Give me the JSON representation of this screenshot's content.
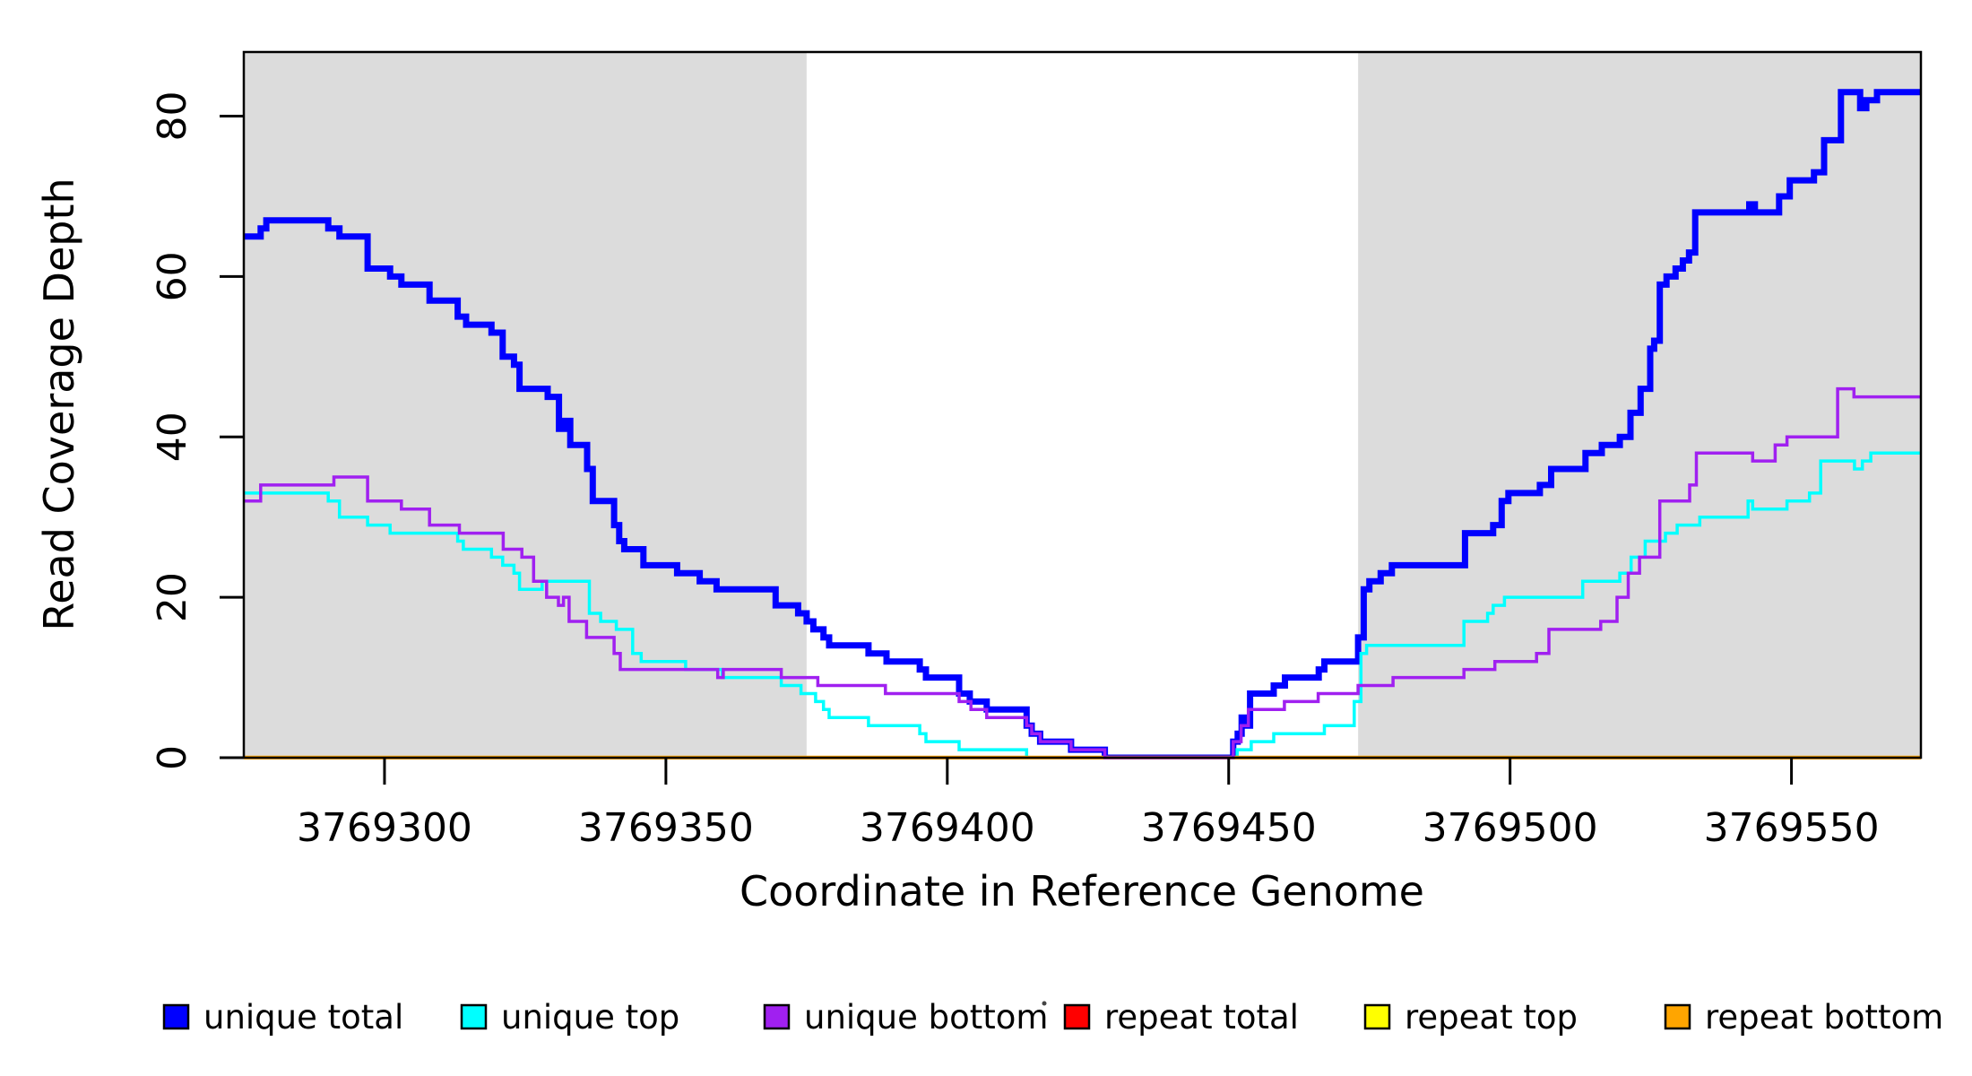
{
  "chart_data": {
    "type": "line",
    "subtype": "step-coverage",
    "title": "",
    "xlabel": "Coordinate in Reference Genome",
    "ylabel": "Read Coverage Depth",
    "xlim": [
      3769275,
      3769573
    ],
    "ylim": [
      0,
      88
    ],
    "grid": false,
    "background_shading": {
      "color": "#dcdcdc",
      "regions": [
        {
          "x0": 3769275,
          "x1": 3769375
        },
        {
          "x0": 3769473,
          "x1": 3769573
        }
      ]
    },
    "xtick_values": [
      3769300,
      3769350,
      3769400,
      3769450,
      3769500,
      3769550
    ],
    "xtick_labels": [
      "3769300",
      "3769350",
      "3769400",
      "3769450",
      "3769500",
      "3769550"
    ],
    "ytick_values": [
      0,
      20,
      40,
      60,
      80
    ],
    "ytick_labels": [
      "0",
      "20",
      "40",
      "60",
      "80"
    ],
    "legend": {
      "position": "bottom",
      "entries": [
        {
          "label": "unique total",
          "color": "#0000ff"
        },
        {
          "label": "unique top",
          "color": "#00ffff"
        },
        {
          "label": "unique bottom",
          "color": "#a020f0"
        },
        {
          "label": "repeat total",
          "color": "#ff0000"
        },
        {
          "label": "repeat top",
          "color": "#ffff00"
        },
        {
          "label": "repeat bottom",
          "color": "#ffa500"
        }
      ]
    },
    "series": [
      {
        "name": "unique-total",
        "label": "unique total",
        "color": "#0000ff",
        "stroke_px": 7,
        "points": [
          [
            3769275,
            65
          ],
          [
            3769278,
            66
          ],
          [
            3769279,
            67
          ],
          [
            3769290,
            66
          ],
          [
            3769292,
            65
          ],
          [
            3769297,
            61
          ],
          [
            3769301,
            60
          ],
          [
            3769303,
            59
          ],
          [
            3769308,
            57
          ],
          [
            3769313,
            55
          ],
          [
            3769314.5,
            54
          ],
          [
            3769319,
            53
          ],
          [
            3769321,
            50
          ],
          [
            3769323,
            49
          ],
          [
            3769324,
            46
          ],
          [
            3769329,
            45
          ],
          [
            3769331,
            41
          ],
          [
            3769332,
            42
          ],
          [
            3769333,
            39
          ],
          [
            3769336,
            36
          ],
          [
            3769337,
            32
          ],
          [
            3769340.8,
            29
          ],
          [
            3769341.7,
            27
          ],
          [
            3769342.6,
            26
          ],
          [
            3769346,
            24
          ],
          [
            3769352,
            23
          ],
          [
            3769356,
            22
          ],
          [
            3769359,
            21
          ],
          [
            3769369.5,
            19
          ],
          [
            3769373.5,
            18
          ],
          [
            3769375,
            17
          ],
          [
            3769376.2,
            16
          ],
          [
            3769378,
            15
          ],
          [
            3769379,
            14
          ],
          [
            3769386,
            13
          ],
          [
            3769389.2,
            12
          ],
          [
            3769395.1,
            11
          ],
          [
            3769396.2,
            10
          ],
          [
            3769402.1,
            8
          ],
          [
            3769404,
            7
          ],
          [
            3769407,
            6
          ],
          [
            3769414.1,
            4
          ],
          [
            3769415,
            3
          ],
          [
            3769416.5,
            2
          ],
          [
            3769422,
            1
          ],
          [
            3769428,
            0
          ],
          [
            3769450.8,
            2
          ],
          [
            3769451.6,
            3
          ],
          [
            3769452.3,
            5
          ],
          [
            3769452.9,
            4
          ],
          [
            3769453.8,
            8
          ],
          [
            3769458,
            9
          ],
          [
            3769460,
            10
          ],
          [
            3769466,
            11
          ],
          [
            3769467,
            12
          ],
          [
            3769473,
            15
          ],
          [
            3769474,
            21
          ],
          [
            3769475,
            22
          ],
          [
            3769477,
            23
          ],
          [
            3769479,
            24
          ],
          [
            3769492,
            28
          ],
          [
            3769497,
            29
          ],
          [
            3769498.5,
            32
          ],
          [
            3769499.7,
            33
          ],
          [
            3769505.3,
            34
          ],
          [
            3769507.3,
            36
          ],
          [
            3769513.4,
            38
          ],
          [
            3769516.3,
            39
          ],
          [
            3769519.5,
            40
          ],
          [
            3769521.4,
            43
          ],
          [
            3769523.2,
            46
          ],
          [
            3769524.9,
            51
          ],
          [
            3769525.6,
            52
          ],
          [
            3769526.6,
            59
          ],
          [
            3769527.8,
            60
          ],
          [
            3769529.4,
            61
          ],
          [
            3769530.7,
            62
          ],
          [
            3769531.8,
            63
          ],
          [
            3769532.9,
            68
          ],
          [
            3769542.5,
            69
          ],
          [
            3769543.5,
            68
          ],
          [
            3769547.8,
            70
          ],
          [
            3769549.7,
            72
          ],
          [
            3769554,
            73
          ],
          [
            3769555.8,
            77
          ],
          [
            3769558.8,
            83
          ],
          [
            3769562.2,
            81
          ],
          [
            3769563.3,
            82
          ],
          [
            3769565.2,
            83
          ]
        ]
      },
      {
        "name": "unique-top",
        "label": "unique top",
        "color": "#00ffff",
        "stroke_px": 3.5,
        "points": [
          [
            3769275,
            33
          ],
          [
            3769290,
            32
          ],
          [
            3769292,
            30
          ],
          [
            3769297,
            29
          ],
          [
            3769301,
            28
          ],
          [
            3769313,
            27
          ],
          [
            3769314,
            26
          ],
          [
            3769319,
            25
          ],
          [
            3769321,
            24
          ],
          [
            3769323,
            23
          ],
          [
            3769324,
            21
          ],
          [
            3769328,
            22
          ],
          [
            3769336.4,
            18
          ],
          [
            3769338.4,
            17
          ],
          [
            3769341.2,
            16
          ],
          [
            3769344.1,
            13
          ],
          [
            3769345.6,
            12
          ],
          [
            3769353.5,
            11
          ],
          [
            3769360,
            10
          ],
          [
            3769370.5,
            9
          ],
          [
            3769374,
            8
          ],
          [
            3769376.6,
            7
          ],
          [
            3769378,
            6
          ],
          [
            3769379,
            5
          ],
          [
            3769386,
            4
          ],
          [
            3769395.1,
            3
          ],
          [
            3769396.2,
            2
          ],
          [
            3769402.1,
            1
          ],
          [
            3769414.1,
            0
          ],
          [
            3769451.5,
            1
          ],
          [
            3769454,
            2
          ],
          [
            3769458,
            3
          ],
          [
            3769467,
            4
          ],
          [
            3769472.3,
            7
          ],
          [
            3769473.5,
            13
          ],
          [
            3769474.5,
            14
          ],
          [
            3769491.8,
            17
          ],
          [
            3769496,
            18
          ],
          [
            3769497,
            19
          ],
          [
            3769499,
            20
          ],
          [
            3769512.9,
            22
          ],
          [
            3769519.5,
            23
          ],
          [
            3769521.5,
            25
          ],
          [
            3769524,
            27
          ],
          [
            3769527.6,
            28
          ],
          [
            3769529.7,
            29
          ],
          [
            3769533.7,
            30
          ],
          [
            3769542.3,
            32
          ],
          [
            3769543.1,
            31
          ],
          [
            3769549.2,
            32
          ],
          [
            3769553.2,
            33
          ],
          [
            3769555.2,
            37
          ],
          [
            3769561.2,
            36
          ],
          [
            3769562.6,
            37
          ],
          [
            3769564.1,
            38
          ]
        ]
      },
      {
        "name": "unique-bottom",
        "label": "unique bottom",
        "color": "#a020f0",
        "stroke_px": 3.5,
        "points": [
          [
            3769275,
            32
          ],
          [
            3769278,
            34
          ],
          [
            3769291,
            35
          ],
          [
            3769297,
            32
          ],
          [
            3769303,
            31
          ],
          [
            3769308,
            29
          ],
          [
            3769313.3,
            28
          ],
          [
            3769321.1,
            26
          ],
          [
            3769324.4,
            25
          ],
          [
            3769326.5,
            22
          ],
          [
            3769328.8,
            20
          ],
          [
            3769330.9,
            19
          ],
          [
            3769331.8,
            20
          ],
          [
            3769332.8,
            17
          ],
          [
            3769335.9,
            15
          ],
          [
            3769340.8,
            13
          ],
          [
            3769341.9,
            11
          ],
          [
            3769359.2,
            10
          ],
          [
            3769360.2,
            11
          ],
          [
            3769370.5,
            10
          ],
          [
            3769377,
            9
          ],
          [
            3769389,
            8
          ],
          [
            3769402.1,
            7
          ],
          [
            3769404.2,
            6
          ],
          [
            3769407,
            5
          ],
          [
            3769414.1,
            4
          ],
          [
            3769415,
            3
          ],
          [
            3769416.5,
            2
          ],
          [
            3769422,
            1
          ],
          [
            3769428,
            0
          ],
          [
            3769450.8,
            2
          ],
          [
            3769452.2,
            4
          ],
          [
            3769453.5,
            6
          ],
          [
            3769459.9,
            7
          ],
          [
            3769465.9,
            8
          ],
          [
            3769473,
            9
          ],
          [
            3769479.2,
            10
          ],
          [
            3769491.8,
            11
          ],
          [
            3769497.3,
            12
          ],
          [
            3769504.7,
            13
          ],
          [
            3769506.9,
            16
          ],
          [
            3769516.1,
            17
          ],
          [
            3769519,
            20
          ],
          [
            3769521,
            23
          ],
          [
            3769523,
            25
          ],
          [
            3769526.6,
            32
          ],
          [
            3769531.9,
            34
          ],
          [
            3769533.1,
            38
          ],
          [
            3769543.1,
            37
          ],
          [
            3769547.1,
            39
          ],
          [
            3769549.2,
            40
          ],
          [
            3769558.2,
            46
          ],
          [
            3769561.1,
            45
          ]
        ]
      },
      {
        "name": "repeat-total",
        "label": "repeat total",
        "color": "#ff0000",
        "stroke_px": 4,
        "points": [
          [
            3769275,
            0
          ]
        ]
      },
      {
        "name": "repeat-top",
        "label": "repeat top",
        "color": "#ffff00",
        "stroke_px": 4,
        "points": [
          [
            3769275,
            0
          ]
        ]
      },
      {
        "name": "repeat-bottom",
        "label": "repeat bottom",
        "color": "#ffa500",
        "stroke_px": 4.5,
        "points": [
          [
            3769275,
            0
          ]
        ]
      }
    ]
  }
}
